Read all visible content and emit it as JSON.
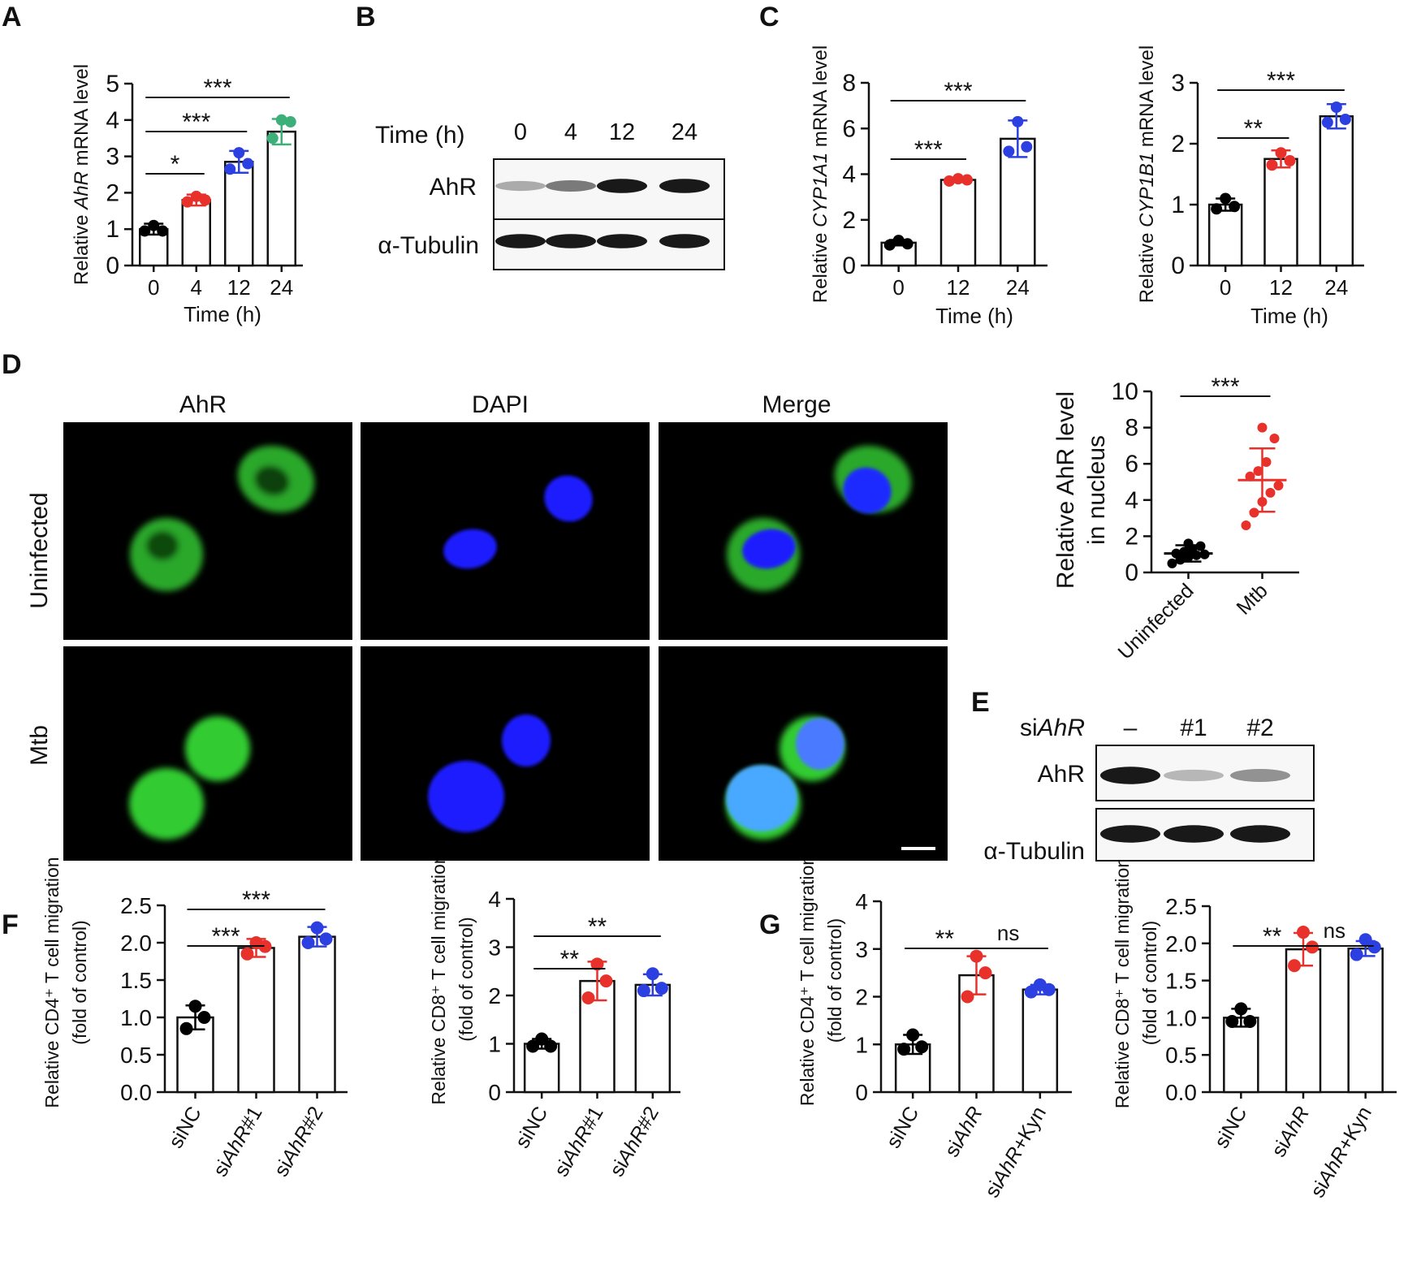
{
  "panel_labels": [
    "A",
    "B",
    "C",
    "D",
    "E",
    "F",
    "G"
  ],
  "chart_data": [
    {
      "id": "A",
      "type": "bar",
      "ylabel": [
        "Relative ",
        "AhR",
        " mRNA level"
      ],
      "xlabel": "Time (h)",
      "categories": [
        "0",
        "4",
        "12",
        "24"
      ],
      "values": [
        1.0,
        1.8,
        2.85,
        3.68
      ],
      "errors": [
        0.15,
        0.15,
        0.3,
        0.35
      ],
      "points": [
        [
          0.95,
          1.1,
          0.95
        ],
        [
          1.75,
          1.9,
          1.8
        ],
        [
          2.65,
          3.1,
          2.8
        ],
        [
          3.5,
          4.0,
          3.95
        ]
      ],
      "point_colors": [
        "#000000",
        "#e8312a",
        "#2c3fe0",
        "#3db07a"
      ],
      "ylim": [
        0,
        5
      ],
      "yticks": [
        "0",
        "1",
        "2",
        "3",
        "4",
        "5"
      ],
      "significance": [
        {
          "from": 0,
          "to": 1,
          "label": "*"
        },
        {
          "from": 0,
          "to": 2,
          "label": "***"
        },
        {
          "from": 0,
          "to": 3,
          "label": "***"
        }
      ]
    },
    {
      "id": "C1",
      "type": "bar",
      "ylabel": [
        "Relative ",
        "CYP1A1",
        " mRNA level"
      ],
      "xlabel": "Time (h)",
      "categories": [
        "0",
        "12",
        "24"
      ],
      "values": [
        1.0,
        3.75,
        5.55
      ],
      "errors": [
        0.12,
        0.1,
        0.8
      ],
      "points": [
        [
          0.9,
          1.1,
          0.95
        ],
        [
          3.7,
          3.8,
          3.75
        ],
        [
          5.0,
          6.3,
          5.2
        ]
      ],
      "point_colors": [
        "#000000",
        "#e8312a",
        "#2c3fe0"
      ],
      "ylim": [
        0,
        8
      ],
      "yticks": [
        "0",
        "2",
        "4",
        "6",
        "8"
      ],
      "significance": [
        {
          "from": 0,
          "to": 1,
          "label": "***"
        },
        {
          "from": 0,
          "to": 2,
          "label": "***"
        }
      ]
    },
    {
      "id": "C2",
      "type": "bar",
      "ylabel": [
        "Relative ",
        "CYP1B1",
        " mRNA level"
      ],
      "xlabel": "Time (h)",
      "categories": [
        "0",
        "12",
        "24"
      ],
      "values": [
        1.0,
        1.75,
        2.45
      ],
      "errors": [
        0.1,
        0.14,
        0.2
      ],
      "points": [
        [
          0.93,
          1.1,
          0.97
        ],
        [
          1.65,
          1.85,
          1.72
        ],
        [
          2.35,
          2.6,
          2.4
        ]
      ],
      "point_colors": [
        "#000000",
        "#e8312a",
        "#2c3fe0"
      ],
      "ylim": [
        0,
        3
      ],
      "yticks": [
        "0",
        "1",
        "2",
        "3"
      ],
      "significance": [
        {
          "from": 0,
          "to": 1,
          "label": "**"
        },
        {
          "from": 0,
          "to": 2,
          "label": "***"
        }
      ]
    },
    {
      "id": "D",
      "type": "scatter",
      "ylabel": [
        "Relative AhR level",
        "in nucleus"
      ],
      "categories": [
        "Uninfected",
        "Mtb"
      ],
      "means": [
        1.05,
        5.1
      ],
      "sds": [
        0.45,
        1.75
      ],
      "points": [
        [
          0.5,
          0.7,
          0.85,
          0.95,
          1.0,
          1.05,
          1.15,
          1.3,
          1.45,
          1.6
        ],
        [
          2.6,
          3.3,
          3.9,
          4.4,
          4.8,
          5.3,
          5.6,
          6.1,
          7.4,
          8.0
        ]
      ],
      "point_colors": [
        "#000000",
        "#e8312a"
      ],
      "ylim": [
        0,
        10
      ],
      "yticks": [
        "0",
        "2",
        "4",
        "6",
        "8",
        "10"
      ],
      "significance": [
        {
          "from": 0,
          "to": 1,
          "label": "***"
        }
      ]
    },
    {
      "id": "F1",
      "type": "bar",
      "ylabel": [
        "Relative CD4⁺ T cell migration",
        "(fold of control)"
      ],
      "categories": [
        "siNC",
        "siAhR#1",
        "siAhR#2"
      ],
      "values": [
        1.0,
        1.93,
        2.08
      ],
      "errors": [
        0.16,
        0.12,
        0.13
      ],
      "points": [
        [
          0.85,
          1.15,
          1.0
        ],
        [
          1.85,
          2.0,
          1.95
        ],
        [
          2.0,
          2.2,
          2.05
        ]
      ],
      "point_colors": [
        "#000000",
        "#e8312a",
        "#2c3fe0"
      ],
      "ylim": [
        0,
        2.5
      ],
      "yticks": [
        "0.0",
        "0.5",
        "1.0",
        "1.5",
        "2.0",
        "2.5"
      ],
      "significance": [
        {
          "from": 0,
          "to": 1,
          "label": "***"
        },
        {
          "from": 0,
          "to": 2,
          "label": "***"
        }
      ]
    },
    {
      "id": "F2",
      "type": "bar",
      "ylabel": [
        "Relative CD8⁺ T cell migration",
        "(fold of control)"
      ],
      "categories": [
        "siNC",
        "siAhR#1",
        "siAhR#2"
      ],
      "values": [
        1.0,
        2.3,
        2.22
      ],
      "errors": [
        0.1,
        0.4,
        0.22
      ],
      "points": [
        [
          0.95,
          1.1,
          0.95
        ],
        [
          1.95,
          2.65,
          2.3
        ],
        [
          2.1,
          2.45,
          2.15
        ]
      ],
      "point_colors": [
        "#000000",
        "#e8312a",
        "#2c3fe0"
      ],
      "ylim": [
        0,
        4
      ],
      "yticks": [
        "0",
        "1",
        "2",
        "3",
        "4"
      ],
      "significance": [
        {
          "from": 0,
          "to": 1,
          "label": "**"
        },
        {
          "from": 0,
          "to": 2,
          "label": "**"
        }
      ]
    },
    {
      "id": "G1",
      "type": "bar",
      "ylabel": [
        "Relative CD4⁺ T cell migration",
        "(fold of control)"
      ],
      "categories": [
        "siNC",
        "siAhR",
        "siAhR+Kyn"
      ],
      "values": [
        1.0,
        2.45,
        2.15
      ],
      "errors": [
        0.2,
        0.4,
        0.1
      ],
      "points": [
        [
          0.9,
          1.2,
          0.95
        ],
        [
          2.0,
          2.85,
          2.5
        ],
        [
          2.1,
          2.25,
          2.15
        ]
      ],
      "point_colors": [
        "#000000",
        "#e8312a",
        "#2c3fe0"
      ],
      "ylim": [
        0,
        4
      ],
      "yticks": [
        "0",
        "1",
        "2",
        "3",
        "4"
      ],
      "significance": [
        {
          "from": 0,
          "to": 1,
          "label": "**"
        },
        {
          "from": 1,
          "to": 2,
          "label": "ns"
        }
      ]
    },
    {
      "id": "G2",
      "type": "bar",
      "ylabel": [
        "Relative CD8⁺ T cell migration",
        "(fold of control)"
      ],
      "categories": [
        "siNC",
        "siAhR",
        "siAhR+Kyn"
      ],
      "values": [
        1.0,
        1.92,
        1.93
      ],
      "errors": [
        0.12,
        0.22,
        0.1
      ],
      "points": [
        [
          0.95,
          1.12,
          0.95
        ],
        [
          1.7,
          2.15,
          1.95
        ],
        [
          1.85,
          2.05,
          1.95
        ]
      ],
      "point_colors": [
        "#000000",
        "#e8312a",
        "#2c3fe0"
      ],
      "ylim": [
        0,
        2.5
      ],
      "yticks": [
        "0.0",
        "0.5",
        "1.0",
        "1.5",
        "2.0",
        "2.5"
      ],
      "significance": [
        {
          "from": 0,
          "to": 1,
          "label": "**"
        },
        {
          "from": 1,
          "to": 2,
          "label": "ns"
        }
      ]
    }
  ],
  "blot_B": {
    "header": "Time (h)",
    "lanes": [
      "0",
      "4",
      "12",
      "24"
    ],
    "rows": [
      "AhR",
      "α-Tubulin"
    ],
    "intensity": {
      "AhR": [
        0.35,
        0.55,
        0.95,
        0.95
      ],
      "α-Tubulin": [
        0.95,
        0.95,
        0.95,
        0.95
      ]
    }
  },
  "blot_E": {
    "header": [
      "si",
      "AhR"
    ],
    "lanes": [
      "–",
      "#1",
      "#2"
    ],
    "rows": [
      "AhR",
      "α-Tubulin"
    ],
    "intensity": {
      "AhR": [
        0.95,
        0.3,
        0.45
      ],
      "α-Tubulin": [
        0.95,
        0.95,
        0.95
      ]
    }
  },
  "micrographs": {
    "columns": [
      {
        "label": "AhR",
        "color": "#2ec22e"
      },
      {
        "label": "DAPI",
        "color": "#1a1aff"
      },
      {
        "label": "Merge",
        "color": "#111111"
      }
    ],
    "rows": [
      "Uninfected",
      "Mtb"
    ]
  }
}
